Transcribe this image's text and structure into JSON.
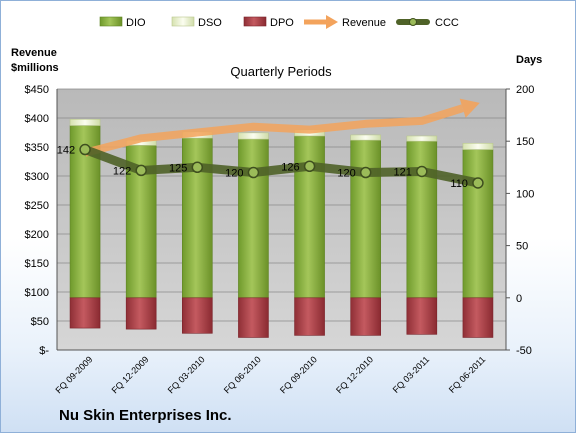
{
  "chart_data": {
    "type": "bar",
    "title": "Quarterly Periods",
    "company": "Nu Skin Enterprises Inc.",
    "left_axis_label": "Revenue\n$millions",
    "right_axis_label": "Days",
    "categories": [
      "FQ 09-2009",
      "FQ 12-2009",
      "FQ 03-2010",
      "FQ 06-2010",
      "FQ 09-2010",
      "FQ 12-2010",
      "FQ 03-2011",
      "FQ 06-2011"
    ],
    "left_ticks": [
      "$-",
      "$50",
      "$100",
      "$150",
      "$200",
      "$250",
      "$300",
      "$350",
      "$400",
      "$450"
    ],
    "right_ticks": [
      "-50",
      "0",
      "50",
      "100",
      "150",
      "200"
    ],
    "ylim_left": [
      0,
      450
    ],
    "ylim_right": [
      -50,
      200
    ],
    "legend": [
      "DIO",
      "DSO",
      "DPO",
      "Revenue",
      "CCC"
    ],
    "legend_position": "top",
    "series": [
      {
        "name": "DIO",
        "axis": "right",
        "values": [
          165,
          146,
          153,
          152,
          155,
          151,
          150,
          142
        ]
      },
      {
        "name": "DSO",
        "axis": "right",
        "values": [
          6,
          5,
          6,
          6,
          6,
          5,
          5,
          6
        ]
      },
      {
        "name": "DPO",
        "axis": "right",
        "values": [
          -29,
          -30,
          -34,
          -38,
          -36,
          -36,
          -35,
          -38
        ]
      },
      {
        "name": "Revenue",
        "axis": "left",
        "values": [
          340,
          365,
          375,
          385,
          380,
          390,
          395,
          425
        ]
      },
      {
        "name": "CCC",
        "axis": "right",
        "values": [
          142,
          122,
          125,
          120,
          126,
          120,
          121,
          110
        ]
      }
    ],
    "data_labels": [
      "142",
      "122",
      "125",
      "120",
      "126",
      "120",
      "121",
      "110"
    ],
    "colors": {
      "DIO": "#8db443",
      "DSO": "#e8f0c8",
      "DPO": "#b6434a",
      "Revenue": "#f3a35c",
      "CCC": "#4f6228",
      "plot_bg": "#c4c4c4",
      "company": "#1f3864"
    },
    "grid": true
  }
}
